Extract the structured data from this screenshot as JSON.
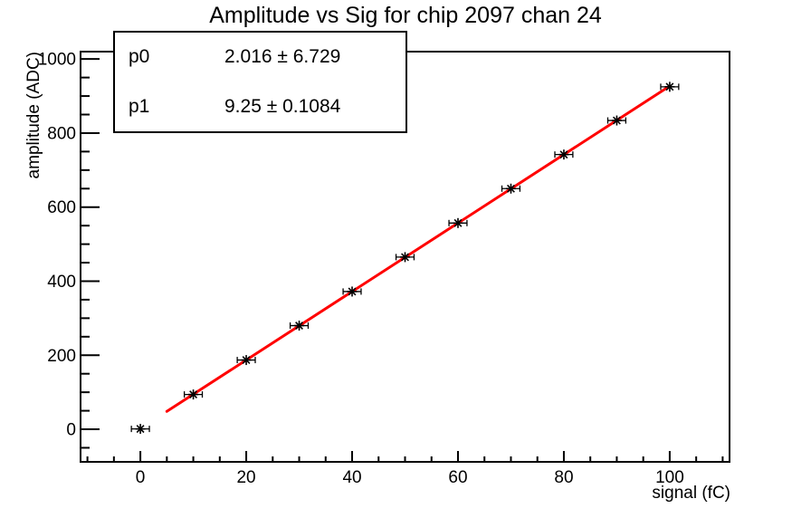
{
  "chart_data": {
    "type": "scatter",
    "title": "Amplitude vs Sig for chip 2097 chan 24",
    "xlabel": "signal (fC)",
    "ylabel": "amplitude (ADC)",
    "x": [
      0,
      10,
      20,
      30,
      40,
      50,
      60,
      70,
      80,
      90,
      100
    ],
    "y": [
      1,
      94,
      187,
      280,
      372,
      465,
      557,
      650,
      742,
      834,
      925
    ],
    "x_err": 1.7,
    "xlim": [
      -11.3,
      111.3
    ],
    "ylim": [
      -88,
      1020
    ],
    "x_ticks": [
      0,
      20,
      40,
      60,
      80,
      100
    ],
    "y_ticks": [
      0,
      200,
      400,
      600,
      800,
      1000
    ],
    "x_minor_step": 5,
    "y_minor_step": 50,
    "grid": false,
    "legend": "none",
    "marker": "asterisk",
    "marker_color": "#000000",
    "axis_color": "#000000",
    "background_color": "#ffffff",
    "fit": {
      "type": "linear",
      "p0": 2.016,
      "p0_err": 6.729,
      "p1": 9.25,
      "p1_err": 0.1084,
      "x_start": 5,
      "x_end": 100,
      "color": "#ff0000"
    }
  },
  "stats_box": {
    "rows": [
      {
        "name": "p0",
        "value": "2.016 ± 6.729"
      },
      {
        "name": "p1",
        "value": "9.25 ± 0.1084"
      }
    ]
  }
}
